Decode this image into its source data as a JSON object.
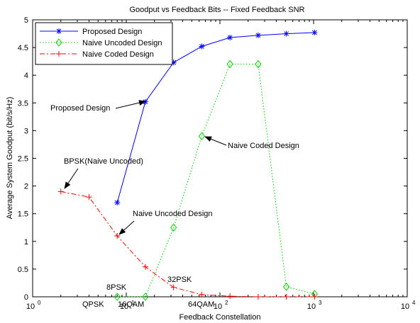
{
  "chart_data": {
    "type": "line",
    "title": "Goodput vs Feedback Bits -- Fixed Feedback SNR",
    "xlabel": "Feedback Constellation",
    "ylabel": "Average System Goodput (bit/s/Hz)",
    "xscale": "log",
    "xlim": [
      1,
      10000
    ],
    "ylim": [
      0,
      5
    ],
    "xticks": [
      {
        "value": 1,
        "base": "10",
        "exp": "0"
      },
      {
        "value": 10,
        "base": "10",
        "exp": "1"
      },
      {
        "value": 100,
        "base": "10",
        "exp": "2"
      },
      {
        "value": 1000,
        "base": "10",
        "exp": "3"
      },
      {
        "value": 10000,
        "base": "10",
        "exp": "4"
      }
    ],
    "yticks": [
      "0",
      "0.5",
      "1",
      "1.5",
      "2",
      "2.5",
      "3",
      "3.5",
      "4",
      "4.5",
      "5"
    ],
    "legend_position": "top-left",
    "series": [
      {
        "name": "Proposed Design",
        "color": "#0000ff",
        "line": "solid",
        "marker": "asterisk",
        "x": [
          8,
          16,
          32,
          64,
          128,
          256,
          512,
          1024
        ],
        "y": [
          1.7,
          3.52,
          4.23,
          4.52,
          4.68,
          4.72,
          4.75,
          4.77
        ]
      },
      {
        "name": "Naive Uncoded Design",
        "color": "#00cc00",
        "line": "dotted",
        "marker": "diamond",
        "x": [
          8,
          16,
          32,
          64,
          128,
          256,
          512,
          1024
        ],
        "y": [
          0.0,
          0.0,
          1.25,
          2.9,
          4.2,
          4.2,
          0.18,
          0.05
        ]
      },
      {
        "name": "Naive Coded Design",
        "color": "#ff0000",
        "line": "dashdot",
        "marker": "plus",
        "x": [
          2,
          4,
          8,
          16,
          32,
          64,
          128,
          256,
          512,
          1024
        ],
        "y": [
          1.9,
          1.8,
          1.1,
          0.54,
          0.17,
          0.04,
          0.01,
          0.0,
          0.0,
          0.0
        ]
      }
    ],
    "annotations": [
      {
        "text": "Proposed Design",
        "x": 16,
        "y": 3.52
      },
      {
        "text": "Naive Coded Design",
        "x": 64,
        "y": 2.9
      },
      {
        "text": "BPSK(Naive Uncoded)",
        "x": 2,
        "y": 1.9
      },
      {
        "text": "Naive Uncoded Design",
        "x": 8,
        "y": 1.1
      }
    ],
    "constellation_labels": [
      "QPSK",
      "8PSK",
      "16QAM",
      "32PSK",
      "64QAM"
    ]
  }
}
